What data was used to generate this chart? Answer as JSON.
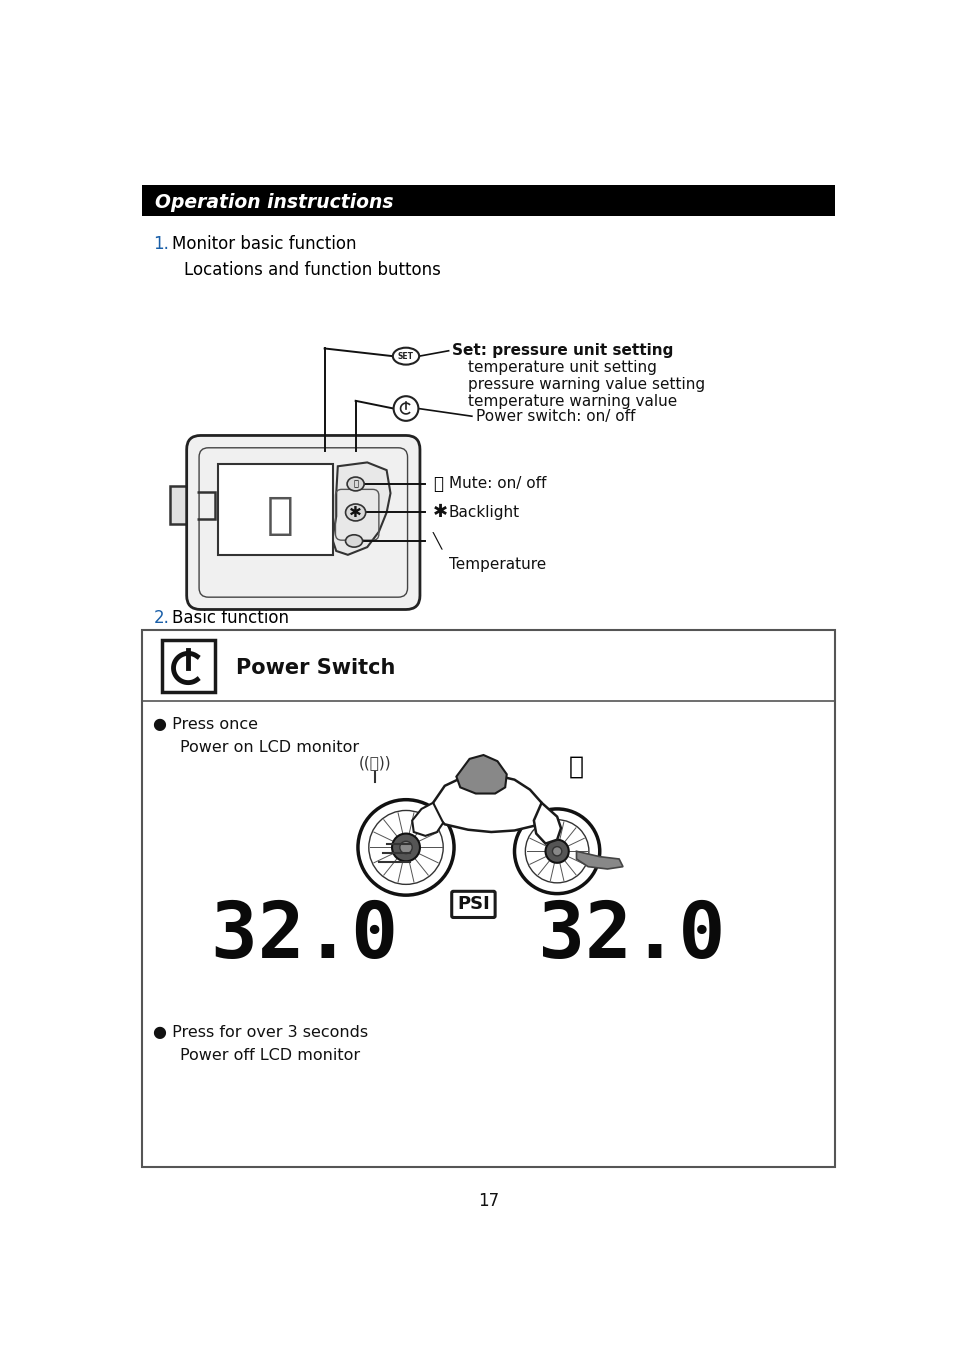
{
  "title": "Operation instructions",
  "title_bg": "#000000",
  "title_color": "#ffffff",
  "page_number": "17",
  "section1_color": "#1a5fa8",
  "section1_text": "Monitor basic function",
  "section1_sub": "Locations and function buttons",
  "set_label_line1": "Set: pressure unit setting",
  "set_label_line2": "     temperature unit setting",
  "set_label_line3": "     pressure warning value setting",
  "set_label_line4": "     temperature warning value",
  "power_label": "Power switch: on/ off",
  "mute_label": "Mute: on/ off",
  "backlight_label": "Backlight",
  "temp_label": "Temperature",
  "section2_color": "#1a5fa8",
  "section2_text": "Basic function",
  "power_switch_label": "Power Switch",
  "press_once_bullet": "● Press once",
  "press_once_sub": "Power on LCD monitor",
  "press_over_bullet": "● Press for over 3 seconds",
  "press_over_sub": "Power off LCD monitor",
  "psi_label": "PSI",
  "bg_color": "#ffffff",
  "text_color": "#000000"
}
